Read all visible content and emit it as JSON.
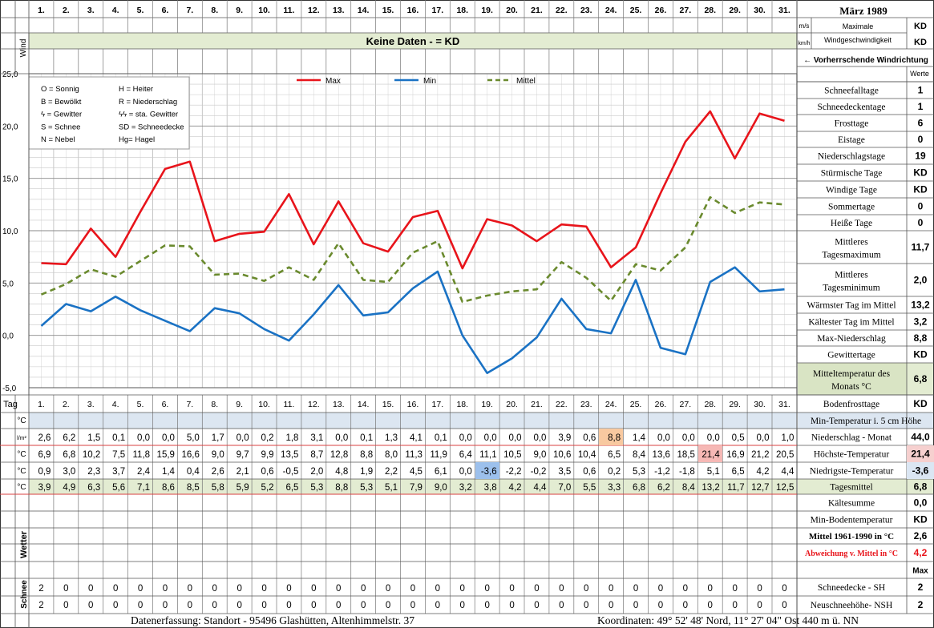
{
  "header": {
    "month_title": "März 1989",
    "wind_label": "Wind",
    "unit_ms": "m/s",
    "unit_kmh": "km/h",
    "max_wind_label_1": "Maximale",
    "max_wind_label_2": "Windgeschwindigkeit",
    "max_wind_value_ms": "KD",
    "max_wind_value_kmh": "KD",
    "no_data_banner": "Keine Daten -  = KD",
    "prevailing_wind": "← Vorherrschende Windrichtung",
    "werte_label": "Werte",
    "days": [
      "1.",
      "2.",
      "3.",
      "4.",
      "5.",
      "6.",
      "7.",
      "8.",
      "9.",
      "10.",
      "11.",
      "12.",
      "13.",
      "14.",
      "15.",
      "16.",
      "17.",
      "18.",
      "19.",
      "20.",
      "21.",
      "22.",
      "23.",
      "24.",
      "25.",
      "26.",
      "27.",
      "28.",
      "29.",
      "30.",
      "31."
    ]
  },
  "legend_box": [
    [
      "O = Sonnig",
      "H = Heiter"
    ],
    [
      "B = Bewölkt",
      "R = Niederschlag"
    ],
    [
      "ϟ = Gewitter",
      "ϟϟ = sta. Gewitter"
    ],
    [
      "S = Schnee",
      "SD = Schneedecke"
    ],
    [
      "N = Nebel",
      "Hg= Hagel"
    ]
  ],
  "chart_data": {
    "type": "line",
    "categories": [
      "1.",
      "2.",
      "3.",
      "4.",
      "5.",
      "6.",
      "7.",
      "8.",
      "9.",
      "10.",
      "11.",
      "12.",
      "13.",
      "14.",
      "15.",
      "16.",
      "17.",
      "18.",
      "19.",
      "20.",
      "21.",
      "22.",
      "23.",
      "24.",
      "25.",
      "26.",
      "27.",
      "28.",
      "29.",
      "30.",
      "31."
    ],
    "series": [
      {
        "name": "Max",
        "color": "#e8141b",
        "style": "solid",
        "values": [
          6.9,
          6.8,
          10.2,
          7.5,
          11.8,
          15.9,
          16.6,
          9.0,
          9.7,
          9.9,
          13.5,
          8.7,
          12.8,
          8.8,
          8.0,
          11.3,
          11.9,
          6.4,
          11.1,
          10.5,
          9.0,
          10.6,
          10.4,
          6.5,
          8.4,
          13.6,
          18.5,
          21.4,
          16.9,
          21.2,
          20.5
        ]
      },
      {
        "name": "Min",
        "color": "#1a72c4",
        "style": "solid",
        "values": [
          0.9,
          3.0,
          2.3,
          3.7,
          2.4,
          1.4,
          0.4,
          2.6,
          2.1,
          0.6,
          -0.5,
          2.0,
          4.8,
          1.9,
          2.2,
          4.5,
          6.1,
          0.0,
          -3.6,
          -2.2,
          -0.2,
          3.5,
          0.6,
          0.2,
          5.3,
          -1.2,
          -1.8,
          5.1,
          6.5,
          4.2,
          4.4
        ]
      },
      {
        "name": "Mittel",
        "color": "#6a8a2e",
        "style": "dashed",
        "values": [
          3.9,
          4.9,
          6.3,
          5.6,
          7.1,
          8.6,
          8.5,
          5.8,
          5.9,
          5.2,
          6.5,
          5.3,
          8.8,
          5.3,
          5.1,
          7.9,
          9.0,
          3.2,
          3.8,
          4.2,
          4.4,
          7.0,
          5.5,
          3.3,
          6.8,
          6.2,
          8.4,
          13.2,
          11.7,
          12.7,
          12.5
        ]
      }
    ],
    "yticks": [
      "25,0",
      "20,0",
      "15,0",
      "10,0",
      "5,0",
      "0,0",
      "-5,0"
    ],
    "ylim": [
      -5,
      25
    ],
    "grid": true,
    "legend": "top"
  },
  "table": {
    "tag_label": "Tag",
    "row_units": [
      "°C",
      "l/m²",
      "°C",
      "°C",
      "°C"
    ],
    "rows": {
      "niederschlag": [
        "2,6",
        "6,2",
        "1,5",
        "0,1",
        "0,0",
        "0,0",
        "5,0",
        "1,7",
        "0,0",
        "0,2",
        "1,8",
        "3,1",
        "0,0",
        "0,1",
        "1,3",
        "4,1",
        "0,1",
        "0,0",
        "0,0",
        "0,0",
        "0,0",
        "3,9",
        "0,6",
        "8,8",
        "1,4",
        "0,0",
        "0,0",
        "0,0",
        "0,5",
        "0,0",
        "1,0"
      ],
      "max": [
        "6,9",
        "6,8",
        "10,2",
        "7,5",
        "11,8",
        "15,9",
        "16,6",
        "9,0",
        "9,7",
        "9,9",
        "13,5",
        "8,7",
        "12,8",
        "8,8",
        "8,0",
        "11,3",
        "11,9",
        "6,4",
        "11,1",
        "10,5",
        "9,0",
        "10,6",
        "10,4",
        "6,5",
        "8,4",
        "13,6",
        "18,5",
        "21,4",
        "16,9",
        "21,2",
        "20,5"
      ],
      "min": [
        "0,9",
        "3,0",
        "2,3",
        "3,7",
        "2,4",
        "1,4",
        "0,4",
        "2,6",
        "2,1",
        "0,6",
        "-0,5",
        "2,0",
        "4,8",
        "1,9",
        "2,2",
        "4,5",
        "6,1",
        "0,0",
        "-3,6",
        "-2,2",
        "-0,2",
        "3,5",
        "0,6",
        "0,2",
        "5,3",
        "-1,2",
        "-1,8",
        "5,1",
        "6,5",
        "4,2",
        "4,4"
      ],
      "mittel": [
        "3,9",
        "4,9",
        "6,3",
        "5,6",
        "7,1",
        "8,6",
        "8,5",
        "5,8",
        "5,9",
        "5,2",
        "6,5",
        "5,3",
        "8,8",
        "5,3",
        "5,1",
        "7,9",
        "9,0",
        "3,2",
        "3,8",
        "4,2",
        "4,4",
        "7,0",
        "5,5",
        "3,3",
        "6,8",
        "6,2",
        "8,4",
        "13,2",
        "11,7",
        "12,7",
        "12,5"
      ],
      "schneedecke": [
        "2",
        "0",
        "0",
        "0",
        "0",
        "0",
        "0",
        "0",
        "0",
        "0",
        "0",
        "0",
        "0",
        "0",
        "0",
        "0",
        "0",
        "0",
        "0",
        "0",
        "0",
        "0",
        "0",
        "0",
        "0",
        "0",
        "0",
        "0",
        "0",
        "0",
        "0"
      ],
      "neuschnee": [
        "2",
        "0",
        "0",
        "0",
        "0",
        "0",
        "0",
        "0",
        "0",
        "0",
        "0",
        "0",
        "0",
        "0",
        "0",
        "0",
        "0",
        "0",
        "0",
        "0",
        "0",
        "0",
        "0",
        "0",
        "0",
        "0",
        "0",
        "0",
        "0",
        "0",
        "0"
      ]
    },
    "wetter_label": "Wetter",
    "schnee_label": "Schnee"
  },
  "stats": [
    {
      "label": "Schneefalltage",
      "value": "1"
    },
    {
      "label": "Schneedeckentage",
      "value": "1"
    },
    {
      "label": "Frosttage",
      "value": "6"
    },
    {
      "label": "Eistage",
      "value": "0"
    },
    {
      "label": "Niederschlagstage",
      "value": "19"
    },
    {
      "label": "Stürmische Tage",
      "value": "KD"
    },
    {
      "label": "Windige Tage",
      "value": "KD"
    },
    {
      "label": "Sommertage",
      "value": "0"
    },
    {
      "label": "Heiße Tage",
      "value": "0"
    },
    {
      "label": "Mittleres|Tagesmaximum",
      "value": "11,7"
    },
    {
      "label": "Mittleres|Tagesminimum",
      "value": "2,0"
    },
    {
      "label": "Wärmster Tag im Mittel",
      "value": "13,2"
    },
    {
      "label": "Kältester Tag im Mittel",
      "value": "3,2"
    },
    {
      "label": "Max-Niederschlag",
      "value": "8,8"
    },
    {
      "label": "Gewittertage",
      "value": "KD"
    },
    {
      "label": "Mitteltemperatur des|Monats °C",
      "value": "6,8"
    }
  ],
  "lower_stats": [
    {
      "label": "Bodenfrosttage",
      "value": "KD"
    },
    {
      "label": "Min-Temperatur i. 5 cm Höhe",
      "value": ""
    },
    {
      "label": "Niederschlag - Monat",
      "value": "44,0"
    },
    {
      "label": "Höchste-Temperatur",
      "value": "21,4"
    },
    {
      "label": "Niedrigste-Temperatur",
      "value": "-3,6"
    },
    {
      "label": "Tagesmittel",
      "value": "6,8"
    },
    {
      "label": "Kältesumme",
      "value": "0,0"
    },
    {
      "label": "Min-Bodentemperatur",
      "value": "KD"
    },
    {
      "label": "Mittel 1961-1990 in °C",
      "value": "2,6"
    },
    {
      "label": "Abweichung v. Mittel in °C",
      "value": "4,2"
    },
    {
      "label": "",
      "value": "Max"
    },
    {
      "label": "Schneedecke -  SH",
      "value": "2"
    },
    {
      "label": "Neuschneehöhe- NSH",
      "value": "2"
    }
  ],
  "footer": {
    "left": "Datenerfassung:  Standort -   95496  Glashütten, Altenhimmelstr. 37",
    "right": "Koordinaten:  49° 52' 48' Nord,  11° 27' 04\" Ost   440 m ü. NN"
  }
}
